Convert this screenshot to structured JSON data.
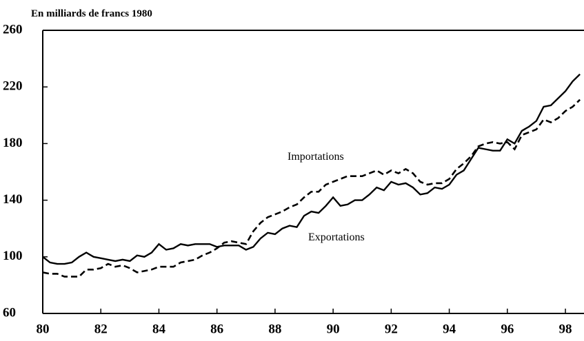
{
  "chart_data": {
    "type": "line",
    "y_label": "En milliards de francs 1980",
    "x": [
      80,
      80.25,
      80.5,
      80.75,
      81,
      81.25,
      81.5,
      81.75,
      82,
      82.25,
      82.5,
      82.75,
      83,
      83.25,
      83.5,
      83.75,
      84,
      84.25,
      84.5,
      84.75,
      85,
      85.25,
      85.5,
      85.75,
      86,
      86.25,
      86.5,
      86.75,
      87,
      87.25,
      87.5,
      87.75,
      88,
      88.25,
      88.5,
      88.75,
      89,
      89.25,
      89.5,
      89.75,
      90,
      90.25,
      90.5,
      90.75,
      91,
      91.25,
      91.5,
      91.75,
      92,
      92.25,
      92.5,
      92.75,
      93,
      93.25,
      93.5,
      93.75,
      94,
      94.25,
      94.5,
      94.75,
      95,
      95.25,
      95.5,
      95.75,
      96,
      96.25,
      96.5,
      96.75,
      97,
      97.25,
      97.5,
      97.75,
      98,
      98.25,
      98.5
    ],
    "series": [
      {
        "name": "Exportations",
        "color": "#000000",
        "dash": "solid",
        "values": [
          100,
          96,
          95,
          95,
          96,
          100,
          103,
          100,
          99,
          98,
          97,
          98,
          97,
          101,
          100,
          103,
          109,
          105,
          106,
          109,
          108,
          109,
          109,
          109,
          107,
          108,
          108,
          108,
          105,
          107,
          113,
          117,
          116,
          120,
          122,
          121,
          129,
          132,
          131,
          136,
          142,
          136,
          137,
          140,
          140,
          144,
          149,
          147,
          153,
          151,
          152,
          149,
          144,
          145,
          149,
          148,
          151,
          158,
          161,
          169,
          177,
          176,
          175,
          175,
          183,
          180,
          189,
          192,
          196,
          206,
          207,
          212,
          217,
          224,
          229
        ]
      },
      {
        "name": "Importations",
        "color": "#000000",
        "dash": "dashed",
        "values": [
          89,
          88,
          88,
          86,
          86,
          86,
          91,
          91,
          92,
          95,
          93,
          94,
          92,
          89,
          90,
          91,
          93,
          93,
          93,
          96,
          97,
          98,
          101,
          103,
          106,
          110,
          111,
          110,
          109,
          118,
          124,
          128,
          130,
          132,
          135,
          137,
          142,
          146,
          146,
          151,
          153,
          155,
          157,
          157,
          157,
          159,
          161,
          158,
          161,
          159,
          162,
          159,
          153,
          151,
          152,
          152,
          155,
          162,
          166,
          171,
          178,
          180,
          181,
          180,
          181,
          176,
          186,
          188,
          190,
          197,
          195,
          198,
          203,
          206,
          211
        ]
      }
    ],
    "xlim": [
      80,
      98.64
    ],
    "xticks": [
      80,
      82,
      84,
      86,
      88,
      90,
      92,
      94,
      96,
      98
    ],
    "ylim": [
      60,
      260
    ],
    "yticks": [
      60,
      100,
      140,
      180,
      220,
      260
    ]
  }
}
